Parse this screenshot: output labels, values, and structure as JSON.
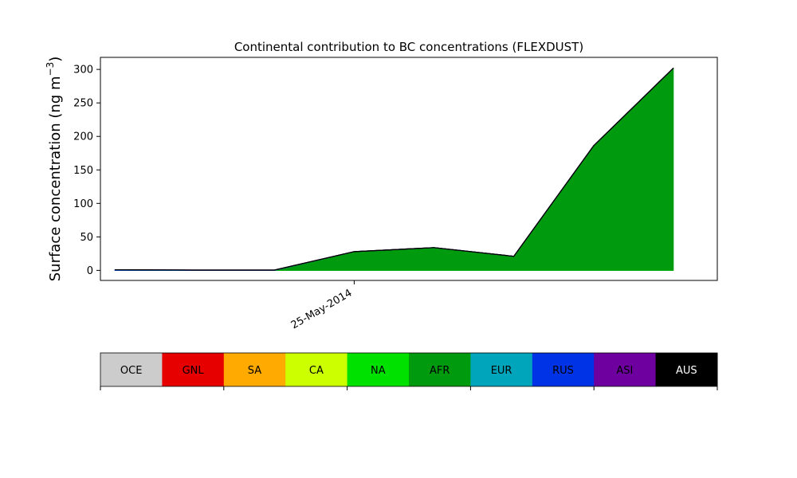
{
  "chart_data": {
    "type": "area",
    "title": "Continental contribution to BC concentrations (FLEXDUST)",
    "ylabel": "Surface concentration (ng m",
    "ylabel_exponent": "−3",
    "ylabel_close": ")",
    "x": [
      0,
      1,
      2,
      3,
      4,
      5,
      6,
      7
    ],
    "xlim": [
      -0.18,
      7.55
    ],
    "x_ticks": [
      {
        "x": 3,
        "label": "25-May-2014"
      }
    ],
    "ylim": [
      -15,
      318
    ],
    "y_ticks": [
      0,
      50,
      100,
      150,
      200,
      250,
      300
    ],
    "grid": false,
    "series": [
      {
        "name": "OCE",
        "color": "#cccccc",
        "values": [
          0,
          0,
          0,
          0,
          0,
          0,
          0,
          0
        ]
      },
      {
        "name": "GNL",
        "color": "#e60000",
        "values": [
          0,
          0,
          0,
          0,
          0,
          0,
          0,
          0
        ]
      },
      {
        "name": "SA",
        "color": "#ffaa00",
        "values": [
          0,
          0,
          0,
          0,
          0,
          0,
          0,
          0
        ]
      },
      {
        "name": "CA",
        "color": "#ccff00",
        "values": [
          0,
          0,
          0,
          0,
          0,
          0,
          0,
          0
        ]
      },
      {
        "name": "NA",
        "color": "#00e100",
        "values": [
          0,
          0,
          0,
          0,
          0,
          0,
          0,
          0
        ]
      },
      {
        "name": "AFR",
        "color": "#009a0f",
        "values": [
          0,
          0,
          0,
          28,
          34,
          21,
          186,
          302
        ]
      },
      {
        "name": "EUR",
        "color": "#00a5bb",
        "values": [
          0,
          0,
          0,
          0,
          0,
          0,
          0,
          0
        ]
      },
      {
        "name": "RUS",
        "color": "#0032e6",
        "values": [
          1,
          0.5,
          0.5,
          0,
          0,
          0,
          0,
          0
        ]
      },
      {
        "name": "ASI",
        "color": "#6e009f",
        "values": [
          0,
          0,
          0,
          0,
          0,
          0,
          0,
          0
        ]
      },
      {
        "name": "AUS",
        "color": "#000000",
        "values": [
          0,
          0,
          0,
          0,
          0,
          0,
          0,
          0
        ]
      }
    ],
    "legend": {
      "placement": "bottom",
      "text_colors": {
        "AUS": "#ffffff"
      }
    }
  }
}
